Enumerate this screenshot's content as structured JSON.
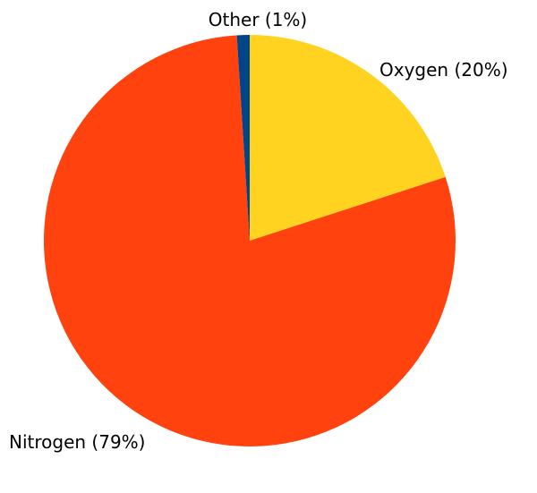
{
  "chart_data": {
    "type": "pie",
    "slices": [
      {
        "label": "Oxygen (20%)",
        "value": 20,
        "color": "#FFD320"
      },
      {
        "label": "Nitrogen (79%)",
        "value": 79,
        "color": "#FF420E"
      },
      {
        "label": "Other (1%)",
        "value": 1,
        "color": "#004586"
      }
    ],
    "start": "12 o'clock",
    "direction": "clockwise",
    "title": "",
    "legend": "none"
  }
}
